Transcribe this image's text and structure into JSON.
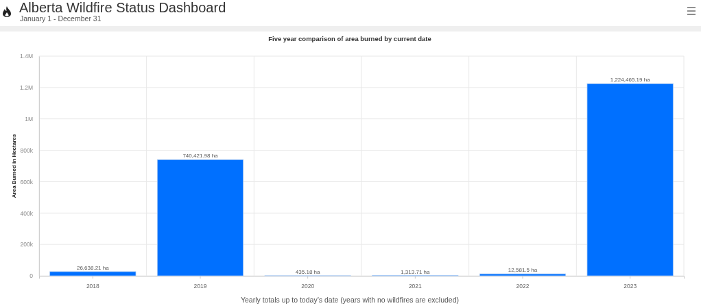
{
  "chart_data": {
    "type": "bar",
    "title": "Five year comparison of area burned by current date",
    "annotations": [
      "Alberta Wildfire Status Dashboard",
      "January 1 - December 31"
    ],
    "xlabel": "Yearly totals up to today’s date (years with no wildfires are excluded)",
    "ylabel": "Area Burned in Hectares",
    "categories": [
      "2018",
      "2019",
      "2020",
      "2021",
      "2022",
      "2023"
    ],
    "values": [
      26638.21,
      740421.98,
      435.18,
      1313.71,
      12581.5,
      1224465.19
    ],
    "value_labels": [
      "26,638.21 ha",
      "740,421.98 ha",
      "435.18 ha",
      "1,313.71 ha",
      "12,581.5 ha",
      "1,224,465.19 ha"
    ],
    "color": "#0070ff",
    "ylim": [
      0,
      1400000
    ],
    "yticks": [
      0,
      {
        "value": 200000,
        "label": "200k"
      },
      {
        "value": 400000,
        "label": "400k"
      },
      {
        "value": 600000,
        "label": "600k"
      },
      {
        "value": 800000,
        "label": "800k"
      },
      {
        "value": 1000000,
        "label": "1M"
      },
      {
        "value": 1200000,
        "label": "1.2M"
      },
      {
        "value": 1400000,
        "label": "1.4M"
      }
    ],
    "grid": true
  }
}
